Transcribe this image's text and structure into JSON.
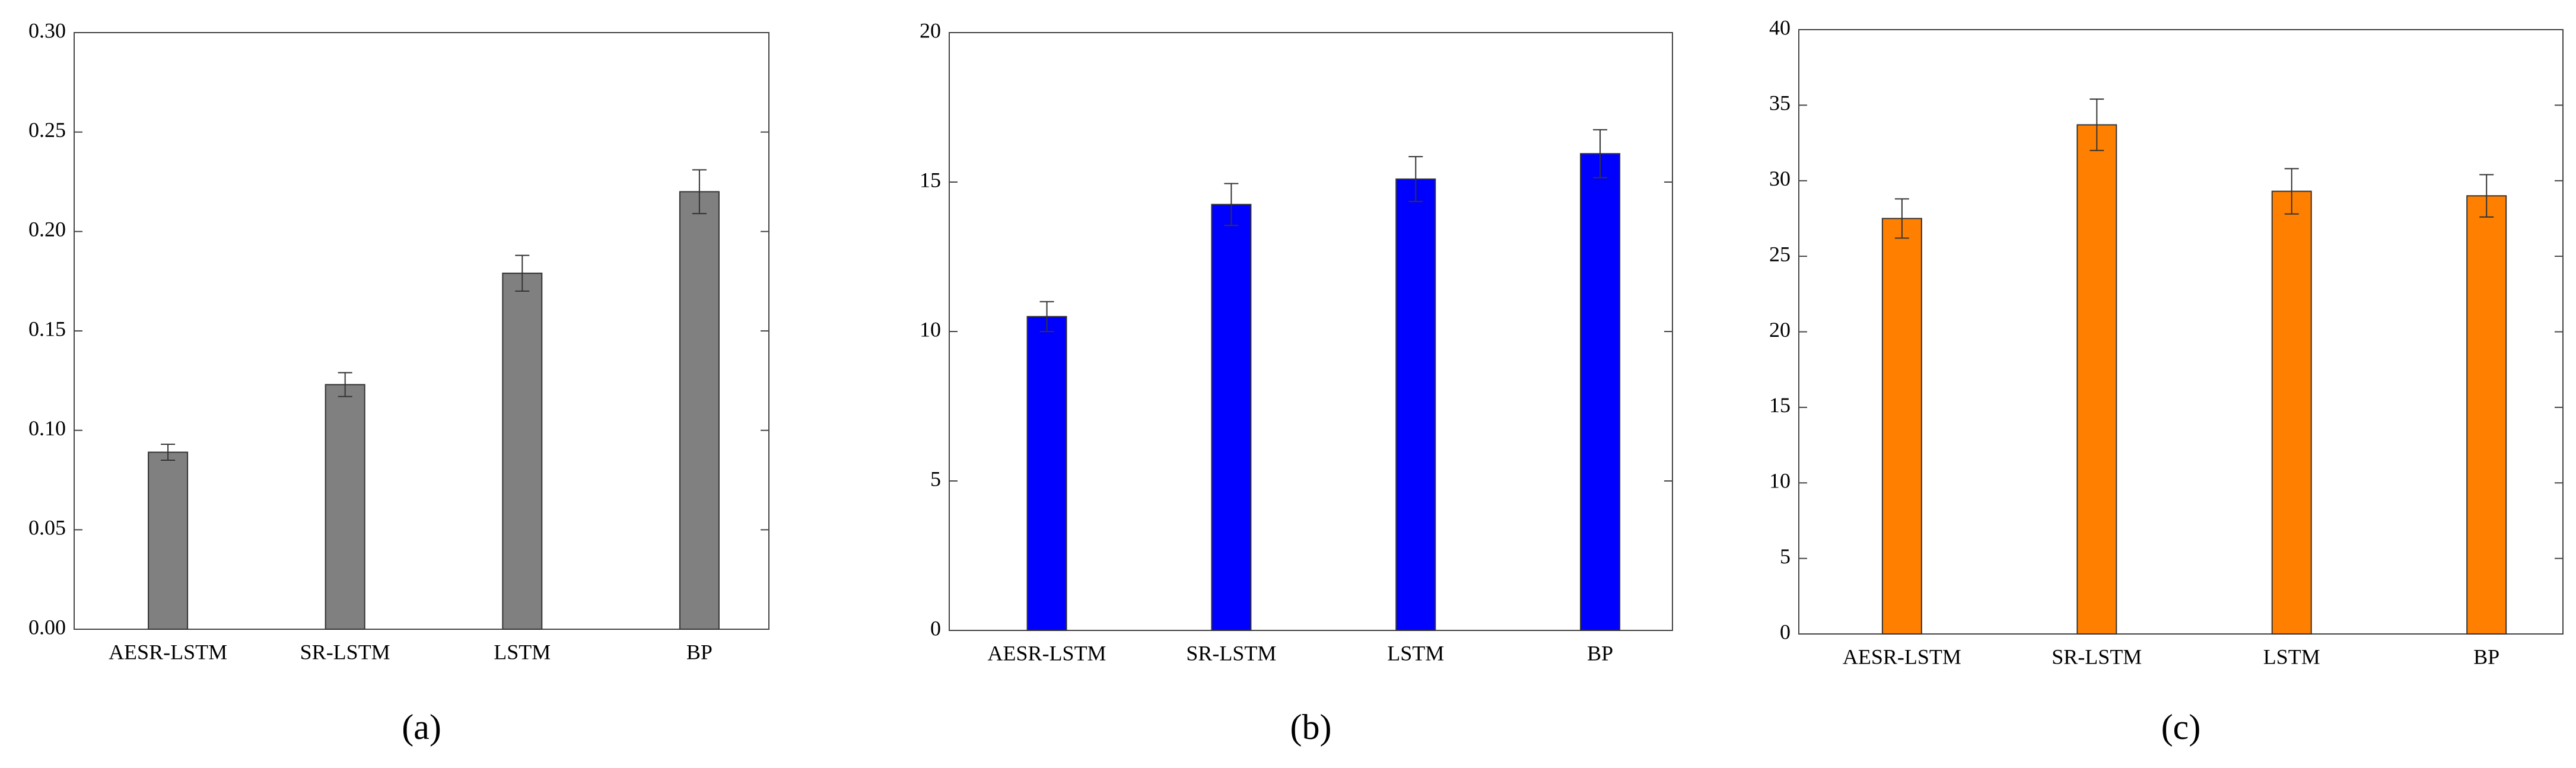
{
  "chart_data": [
    {
      "type": "bar",
      "caption": "(a)",
      "color": "#808080",
      "categories": [
        "AESR-LSTM",
        "SR-LSTM",
        "LSTM",
        "BP"
      ],
      "values": [
        0.089,
        0.123,
        0.179,
        0.22
      ],
      "errors": [
        0.004,
        0.006,
        0.009,
        0.011
      ],
      "ylim": [
        0,
        0.3
      ],
      "yticks": [
        {
          "value": 0,
          "label": "0.00"
        },
        {
          "value": 0.05,
          "label": "0.05"
        },
        {
          "value": 0.1,
          "label": "0.10"
        },
        {
          "value": 0.15,
          "label": "0.15"
        },
        {
          "value": 0.2,
          "label": "0.20"
        },
        {
          "value": 0.25,
          "label": "0.25"
        },
        {
          "value": 0.3,
          "label": "0.30"
        }
      ]
    },
    {
      "type": "bar",
      "caption": "(b)",
      "color": "#0000ff",
      "categories": [
        "AESR-LSTM",
        "SR-LSTM",
        "LSTM",
        "BP"
      ],
      "values": [
        10.5,
        14.25,
        15.1,
        15.95
      ],
      "errors": [
        0.5,
        0.7,
        0.75,
        0.8
      ],
      "ylim": [
        0,
        20
      ],
      "yticks": [
        0,
        5,
        10,
        15,
        20
      ]
    },
    {
      "type": "bar",
      "caption": "(c)",
      "color": "#ff8000",
      "categories": [
        "AESR-LSTM",
        "SR-LSTM",
        "LSTM",
        "BP"
      ],
      "values": [
        27.5,
        33.7,
        29.3,
        29.0
      ],
      "errors": [
        1.3,
        1.7,
        1.5,
        1.4
      ],
      "ylim": [
        0,
        40
      ],
      "yticks": [
        0,
        5,
        10,
        15,
        20,
        25,
        30,
        35,
        40
      ]
    }
  ]
}
